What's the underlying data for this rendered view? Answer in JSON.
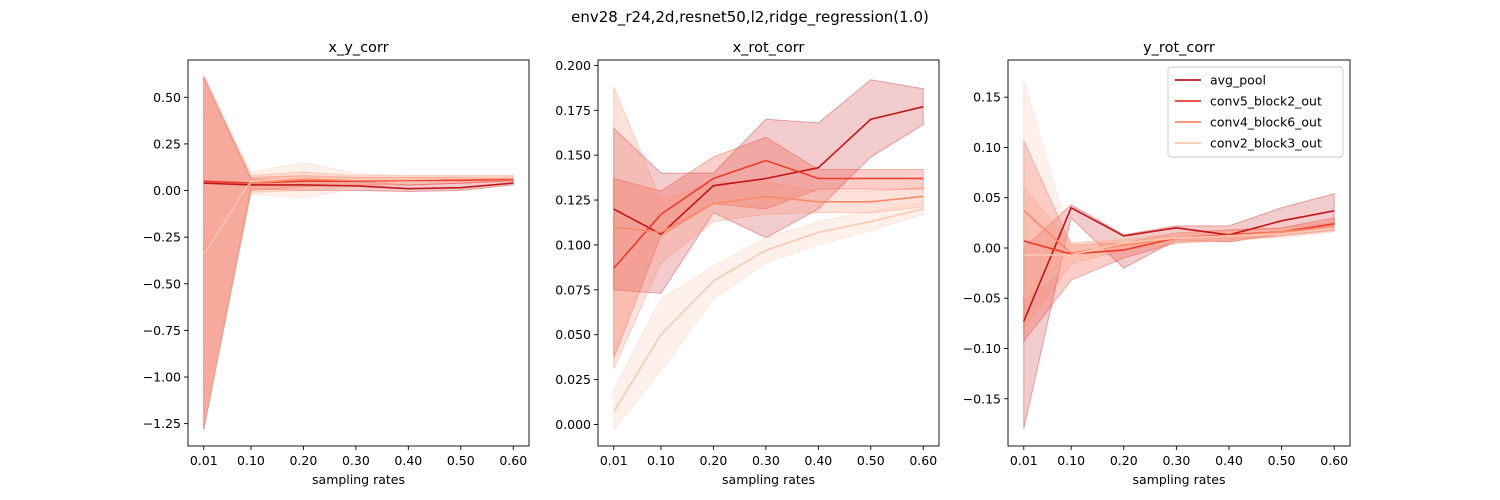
{
  "figure_title": "env28_r24,2d,resnet50,l2,ridge_regression(1.0)",
  "colors": {
    "avg_pool": "#c2161b",
    "conv5_block2_out": "#ee3a2c",
    "conv4_block6_out": "#fc8a6a",
    "conv2_block3_out": "#fdc7b1"
  },
  "chart_data": [
    {
      "type": "line",
      "title": "x_y_corr",
      "xlabel": "sampling rates",
      "ylabel": "",
      "x": [
        0.01,
        0.1,
        0.2,
        0.3,
        0.4,
        0.5,
        0.6
      ],
      "x_tick_labels": [
        "0.01",
        "0.10",
        "0.20",
        "0.30",
        "0.40",
        "0.50",
        "0.60"
      ],
      "ylim": [
        -1.37,
        0.7
      ],
      "yticks": [
        0.5,
        0.25,
        0.0,
        -0.25,
        -0.5,
        -0.75,
        -1.0,
        -1.25
      ],
      "y_tick_labels": [
        "0.50",
        "0.25",
        "0.00",
        "−0.25",
        "−0.50",
        "−0.75",
        "−1.00",
        "−1.25"
      ],
      "series": [
        {
          "key": "avg_pool",
          "values": [
            0.04,
            0.03,
            0.03,
            0.025,
            0.01,
            0.015,
            0.04
          ],
          "lower": [
            -1.28,
            0.01,
            0.0,
            0.0,
            -0.005,
            0.0,
            0.03
          ],
          "upper": [
            0.61,
            0.06,
            0.06,
            0.05,
            0.03,
            0.04,
            0.055
          ]
        },
        {
          "key": "conv5_block2_out",
          "values": [
            0.05,
            0.04,
            0.05,
            0.05,
            0.055,
            0.055,
            0.06
          ],
          "lower": [
            -1.28,
            0.0,
            0.02,
            0.03,
            0.03,
            0.04,
            0.05
          ],
          "upper": [
            0.6,
            0.07,
            0.08,
            0.07,
            0.07,
            0.07,
            0.07
          ]
        },
        {
          "key": "conv4_block6_out",
          "values": [
            -0.33,
            0.04,
            0.06,
            0.055,
            0.06,
            0.065,
            0.065
          ],
          "lower": [
            -1.27,
            -0.01,
            0.0,
            0.02,
            0.04,
            0.045,
            0.05
          ],
          "upper": [
            0.62,
            0.08,
            0.1,
            0.08,
            0.08,
            0.08,
            0.08
          ]
        },
        {
          "key": "conv2_block3_out",
          "values": [
            -0.34,
            0.05,
            0.07,
            0.06,
            0.06,
            0.065,
            0.07
          ],
          "lower": [
            -1.27,
            -0.02,
            -0.04,
            0.01,
            0.04,
            0.05,
            0.06
          ],
          "upper": [
            0.6,
            0.1,
            0.15,
            0.09,
            0.08,
            0.08,
            0.08
          ]
        }
      ]
    },
    {
      "type": "line",
      "title": "x_rot_corr",
      "xlabel": "sampling rates",
      "ylabel": "",
      "x": [
        0.01,
        0.1,
        0.2,
        0.3,
        0.4,
        0.5,
        0.6
      ],
      "x_tick_labels": [
        "0.01",
        "0.10",
        "0.20",
        "0.30",
        "0.40",
        "0.50",
        "0.60"
      ],
      "ylim": [
        -0.012,
        0.203
      ],
      "yticks": [
        0.2,
        0.175,
        0.15,
        0.125,
        0.1,
        0.075,
        0.05,
        0.025,
        0.0
      ],
      "y_tick_labels": [
        "0.200",
        "0.175",
        "0.150",
        "0.125",
        "0.100",
        "0.075",
        "0.050",
        "0.025",
        "0.000"
      ],
      "series": [
        {
          "key": "avg_pool",
          "values": [
            0.12,
            0.106,
            0.133,
            0.137,
            0.143,
            0.17,
            0.177
          ],
          "lower": [
            0.075,
            0.073,
            0.118,
            0.104,
            0.12,
            0.149,
            0.167
          ],
          "upper": [
            0.165,
            0.14,
            0.14,
            0.17,
            0.168,
            0.192,
            0.187
          ]
        },
        {
          "key": "conv5_block2_out",
          "values": [
            0.087,
            0.117,
            0.137,
            0.147,
            0.137,
            0.137,
            0.137
          ],
          "lower": [
            0.037,
            0.105,
            0.123,
            0.12,
            0.131,
            0.131,
            0.131
          ],
          "upper": [
            0.137,
            0.13,
            0.149,
            0.16,
            0.142,
            0.142,
            0.142
          ]
        },
        {
          "key": "conv4_block6_out",
          "values": [
            0.11,
            0.107,
            0.123,
            0.127,
            0.124,
            0.124,
            0.127
          ],
          "lower": [
            0.031,
            0.09,
            0.113,
            0.117,
            0.118,
            0.118,
            0.121
          ],
          "upper": [
            0.188,
            0.125,
            0.135,
            0.135,
            0.13,
            0.13,
            0.132
          ]
        },
        {
          "key": "conv2_block3_out",
          "values": [
            0.007,
            0.05,
            0.08,
            0.097,
            0.107,
            0.113,
            0.12
          ],
          "lower": [
            -0.003,
            0.03,
            0.07,
            0.09,
            0.1,
            0.108,
            0.117
          ],
          "upper": [
            0.019,
            0.07,
            0.088,
            0.104,
            0.113,
            0.119,
            0.124
          ]
        }
      ]
    },
    {
      "type": "line",
      "title": "y_rot_corr",
      "xlabel": "sampling rates",
      "ylabel": "",
      "x": [
        0.01,
        0.1,
        0.2,
        0.3,
        0.4,
        0.5,
        0.6
      ],
      "x_tick_labels": [
        "0.01",
        "0.10",
        "0.20",
        "0.30",
        "0.40",
        "0.50",
        "0.60"
      ],
      "ylim": [
        -0.197,
        0.187
      ],
      "yticks": [
        0.15,
        0.1,
        0.05,
        0.0,
        -0.05,
        -0.1,
        -0.15
      ],
      "y_tick_labels": [
        "0.15",
        "0.10",
        "0.05",
        "0.00",
        "−0.05",
        "−0.10",
        "−0.15"
      ],
      "legend": {
        "placement": "top-right",
        "entries": [
          "avg_pool",
          "conv5_block2_out",
          "conv4_block6_out",
          "conv2_block3_out"
        ]
      },
      "series": [
        {
          "key": "avg_pool",
          "values": [
            -0.073,
            0.04,
            0.012,
            0.02,
            0.013,
            0.027,
            0.037
          ],
          "lower": [
            -0.18,
            0.03,
            -0.02,
            0.008,
            0.006,
            0.014,
            0.022
          ],
          "upper": [
            0.0,
            0.043,
            0.013,
            0.022,
            0.022,
            0.04,
            0.054
          ]
        },
        {
          "key": "conv5_block2_out",
          "values": [
            0.007,
            -0.006,
            -0.002,
            0.01,
            0.013,
            0.016,
            0.024
          ],
          "lower": [
            -0.093,
            -0.032,
            -0.01,
            0.005,
            0.008,
            0.012,
            0.018
          ],
          "upper": [
            0.107,
            0.003,
            0.005,
            0.015,
            0.018,
            0.02,
            0.03
          ]
        },
        {
          "key": "conv4_block6_out",
          "values": [
            0.037,
            -0.005,
            0.003,
            0.01,
            0.012,
            0.016,
            0.021
          ],
          "lower": [
            -0.08,
            -0.016,
            -0.002,
            0.005,
            0.007,
            0.012,
            0.017
          ],
          "upper": [
            0.06,
            0.005,
            0.008,
            0.015,
            0.017,
            0.02,
            0.025
          ]
        },
        {
          "key": "conv2_block3_out",
          "values": [
            -0.007,
            -0.007,
            0.005,
            0.01,
            0.012,
            0.014,
            0.02
          ],
          "lower": [
            -0.05,
            -0.015,
            0.0,
            0.005,
            0.008,
            0.01,
            0.016
          ],
          "upper": [
            0.167,
            0.005,
            0.01,
            0.015,
            0.016,
            0.018,
            0.024
          ]
        }
      ]
    }
  ]
}
